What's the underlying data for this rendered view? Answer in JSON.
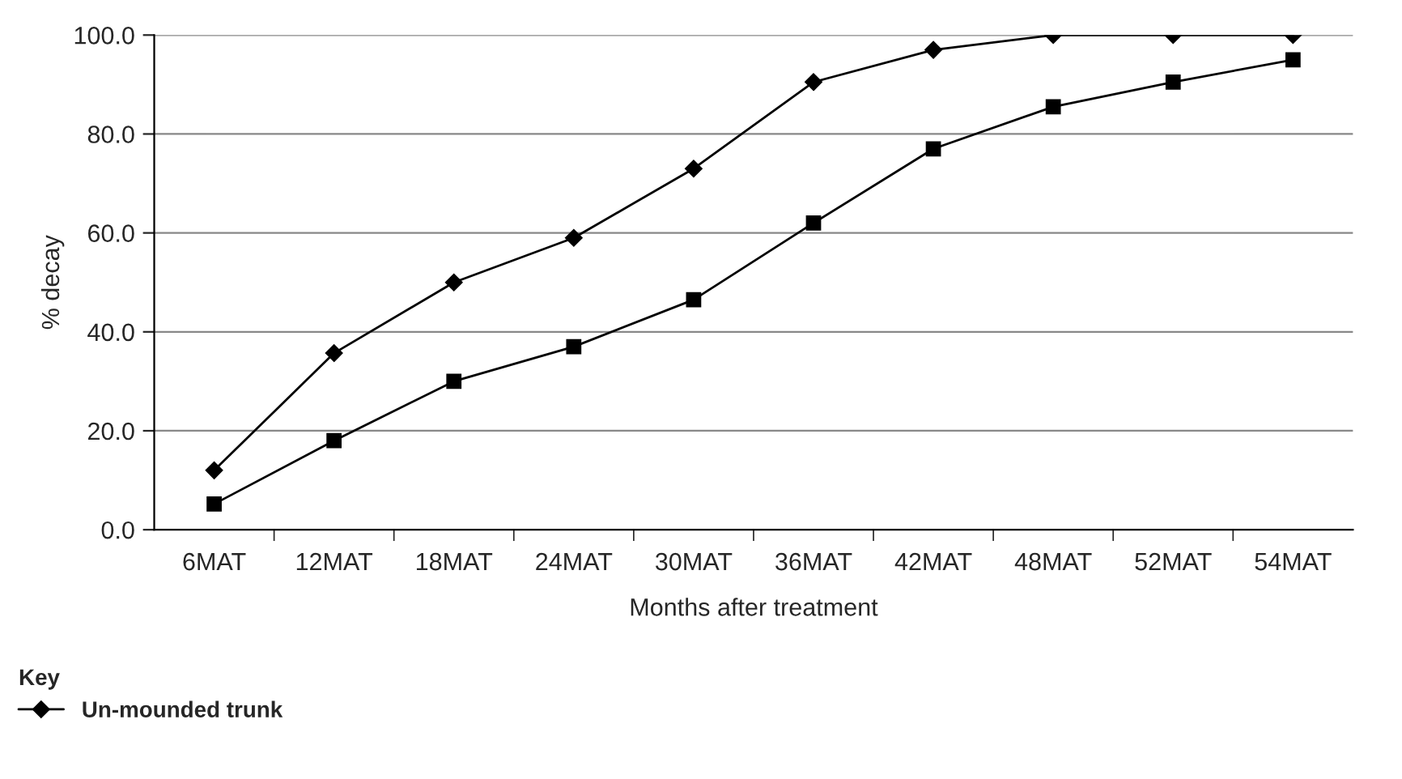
{
  "chart_data": {
    "type": "line",
    "xlabel": "Months after treatment",
    "ylabel": "% decay",
    "categories": [
      "6MAT",
      "12MAT",
      "18MAT",
      "24MAT",
      "30MAT",
      "36MAT",
      "42MAT",
      "48MAT",
      "52MAT",
      "54MAT"
    ],
    "series": [
      {
        "name": "Un-mounded trunk",
        "color": "#000000",
        "marker": "diamond",
        "values": [
          12,
          35.7,
          50,
          59,
          73,
          90.5,
          97,
          100,
          100,
          100
        ]
      },
      {
        "color": "#000000",
        "marker": "square",
        "values": [
          5.2,
          18,
          30,
          37,
          46.5,
          62,
          77,
          85.5,
          90.5,
          95
        ]
      }
    ],
    "ylim": [
      0,
      100
    ],
    "yticks": [
      {
        "value": 0,
        "label": "0.0"
      },
      {
        "value": 20,
        "label": "20.0"
      },
      {
        "value": 40,
        "label": "40.0"
      },
      {
        "value": 60,
        "label": "60.0"
      },
      {
        "value": 80,
        "label": "80.0"
      },
      {
        "value": 100,
        "label": "100.0"
      }
    ],
    "grid": "y",
    "legend": "bottom left",
    "legend_title": "Key",
    "line_style": "solid"
  }
}
